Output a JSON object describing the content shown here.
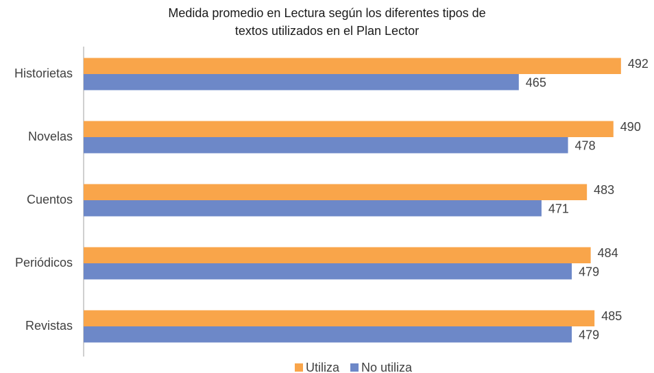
{
  "chart_data": {
    "type": "hbar",
    "title": "Medida promedio en Lectura según los diferentes tipos de textos utilizados en el Plan Lector",
    "categories": [
      "Historietas",
      "Novelas",
      "Cuentos",
      "Periódicos",
      "Revistas"
    ],
    "series": [
      {
        "name": "Utiliza",
        "color": "#f9a54a",
        "values": [
          492,
          490,
          483,
          484,
          485
        ]
      },
      {
        "name": "No utiliza",
        "color": "#6d88c8",
        "values": [
          465,
          478,
          471,
          479,
          479
        ]
      }
    ],
    "xlim": [
      350,
      500
    ]
  }
}
